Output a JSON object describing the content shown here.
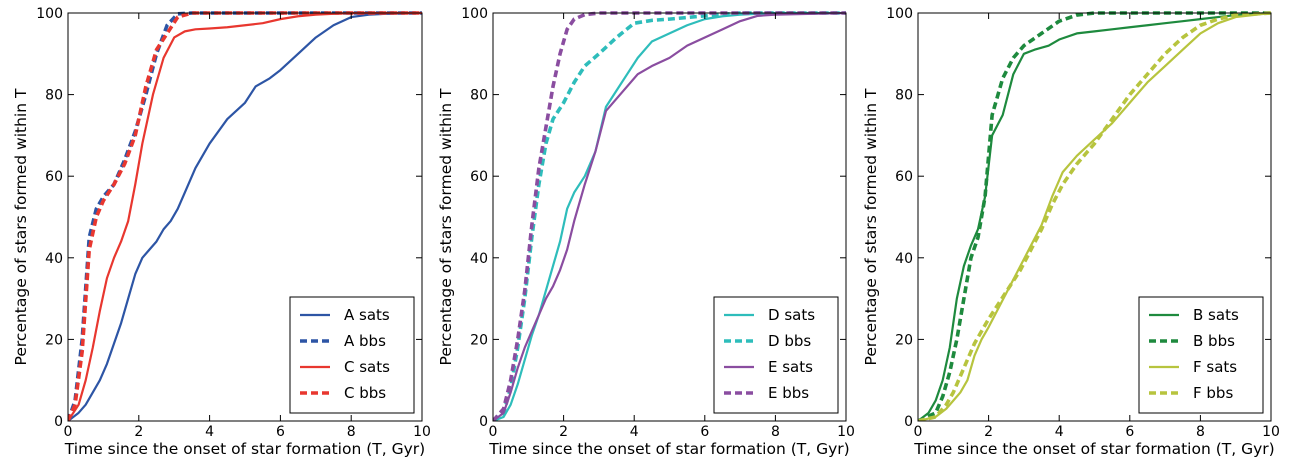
{
  "chart_data": [
    {
      "type": "line",
      "xlabel": "Time since the onset of star formation (T, Gyr)",
      "ylabel": "Percentage of stars formed within T",
      "xlim": [
        0,
        10
      ],
      "ylim": [
        0,
        100
      ],
      "xticks": [
        "0",
        "2",
        "4",
        "6",
        "8",
        "10"
      ],
      "yticks": [
        "0",
        "20",
        "40",
        "60",
        "80",
        "100"
      ],
      "legend_position": "lower-right",
      "series": [
        {
          "name": "A sats",
          "color": "#2d55a5",
          "dashed": false,
          "x": [
            0,
            0.3,
            0.5,
            0.7,
            0.9,
            1.1,
            1.3,
            1.5,
            1.7,
            1.9,
            2.1,
            2.3,
            2.5,
            2.7,
            2.9,
            3.1,
            3.3,
            3.6,
            4.0,
            4.5,
            5.0,
            5.3,
            5.7,
            6.0,
            6.5,
            7.0,
            7.5,
            8.0,
            8.5,
            9.0,
            10.0
          ],
          "y": [
            0,
            2,
            4,
            7,
            10,
            14,
            19,
            24,
            30,
            36,
            40,
            42,
            44,
            47,
            49,
            52,
            56,
            62,
            68,
            74,
            78,
            82,
            84,
            86,
            90,
            94,
            97,
            99,
            99.6,
            99.8,
            100
          ]
        },
        {
          "name": "A bbs",
          "color": "#2d55a5",
          "dashed": true,
          "x": [
            0,
            0.2,
            0.4,
            0.6,
            0.8,
            1.0,
            1.3,
            1.6,
            1.9,
            2.2,
            2.5,
            2.8,
            3.1,
            3.5,
            4.0,
            10.0
          ],
          "y": [
            0,
            5,
            20,
            45,
            52,
            55,
            58,
            64,
            71,
            80,
            90,
            97,
            99.8,
            100,
            100,
            100
          ]
        },
        {
          "name": "C sats",
          "color": "#e8372f",
          "dashed": false,
          "x": [
            0,
            0.3,
            0.5,
            0.7,
            0.9,
            1.1,
            1.3,
            1.5,
            1.7,
            1.9,
            2.1,
            2.4,
            2.7,
            3.0,
            3.3,
            3.6,
            4.0,
            4.5,
            5.0,
            5.5,
            6.0,
            6.5,
            7.0,
            7.5,
            8.0,
            10.0
          ],
          "y": [
            0,
            4,
            10,
            18,
            27,
            35,
            40,
            44,
            49,
            58,
            68,
            80,
            89,
            94,
            95.5,
            96,
            96.2,
            96.5,
            97,
            97.5,
            98.5,
            99.2,
            99.6,
            99.8,
            100,
            100
          ]
        },
        {
          "name": "C bbs",
          "color": "#e8372f",
          "dashed": true,
          "x": [
            0,
            0.2,
            0.4,
            0.6,
            0.8,
            1.0,
            1.3,
            1.6,
            1.9,
            2.2,
            2.5,
            2.8,
            3.1,
            3.5,
            4.0,
            10.0
          ],
          "y": [
            0,
            4,
            17,
            42,
            50,
            54,
            58,
            63,
            70,
            82,
            91,
            95,
            99,
            100,
            100,
            100
          ]
        }
      ]
    },
    {
      "type": "line",
      "xlabel": "Time since the onset of star formation (T, Gyr)",
      "ylabel": "Percentage of stars formed within T",
      "xlim": [
        0,
        10
      ],
      "ylim": [
        0,
        100
      ],
      "xticks": [
        "0",
        "2",
        "4",
        "6",
        "8",
        "10"
      ],
      "yticks": [
        "0",
        "20",
        "40",
        "60",
        "80",
        "100"
      ],
      "legend_position": "lower-right",
      "series": [
        {
          "name": "D sats",
          "color": "#2ebdbb",
          "dashed": false,
          "x": [
            0,
            0.3,
            0.5,
            0.7,
            0.9,
            1.1,
            1.3,
            1.5,
            1.7,
            1.9,
            2.1,
            2.3,
            2.6,
            2.9,
            3.2,
            3.5,
            3.8,
            4.1,
            4.5,
            5.0,
            5.5,
            6.0,
            6.5,
            7.0,
            8.0,
            10.0
          ],
          "y": [
            0,
            1,
            4,
            9,
            15,
            21,
            26,
            32,
            38,
            44,
            52,
            56,
            60,
            66,
            77,
            81,
            85,
            89,
            93,
            95,
            97,
            98.5,
            99.2,
            99.6,
            100,
            100
          ]
        },
        {
          "name": "D bbs",
          "color": "#2ebdbb",
          "dashed": true,
          "x": [
            0,
            0.3,
            0.5,
            0.7,
            0.9,
            1.1,
            1.3,
            1.5,
            1.7,
            2.0,
            2.3,
            2.6,
            3.0,
            3.5,
            4.0,
            4.5,
            5.0,
            6.0,
            7.0,
            8.0,
            10.0
          ],
          "y": [
            0,
            2,
            8,
            18,
            30,
            45,
            58,
            68,
            74,
            78,
            83,
            87,
            90,
            94,
            97.5,
            98.2,
            98.5,
            99.3,
            100,
            100,
            100
          ]
        },
        {
          "name": "E sats",
          "color": "#8a4da0",
          "dashed": false,
          "x": [
            0,
            0.3,
            0.5,
            0.7,
            0.9,
            1.1,
            1.3,
            1.5,
            1.7,
            1.9,
            2.1,
            2.3,
            2.6,
            2.9,
            3.2,
            3.5,
            3.8,
            4.1,
            4.5,
            5.0,
            5.5,
            6.0,
            6.5,
            7.0,
            7.5,
            8.0,
            10.0
          ],
          "y": [
            0,
            2,
            7,
            13,
            18,
            22,
            26,
            30,
            33,
            37,
            42,
            49,
            58,
            66,
            76,
            79,
            82,
            85,
            87,
            89,
            92,
            94,
            96,
            98,
            99.3,
            99.6,
            100
          ]
        },
        {
          "name": "E bbs",
          "color": "#8a4da0",
          "dashed": true,
          "x": [
            0,
            0.3,
            0.5,
            0.7,
            0.9,
            1.1,
            1.3,
            1.5,
            1.7,
            1.9,
            2.1,
            2.3,
            2.6,
            3.0,
            4.0,
            10.0
          ],
          "y": [
            0,
            3,
            10,
            20,
            32,
            48,
            62,
            72,
            82,
            90,
            96,
            98.5,
            99.6,
            100,
            100,
            100
          ]
        }
      ]
    },
    {
      "type": "line",
      "xlabel": "Time since the onset of star formation (T, Gyr)",
      "ylabel": "Percentage of stars formed within T",
      "xlim": [
        0,
        10
      ],
      "ylim": [
        0,
        100
      ],
      "xticks": [
        "0",
        "2",
        "4",
        "6",
        "8",
        "10"
      ],
      "yticks": [
        "0",
        "20",
        "40",
        "60",
        "80",
        "100"
      ],
      "legend_position": "lower-right",
      "series": [
        {
          "name": "B sats",
          "color": "#1e8a3e",
          "dashed": false,
          "x": [
            0,
            0.3,
            0.5,
            0.7,
            0.9,
            1.1,
            1.3,
            1.5,
            1.7,
            1.9,
            2.1,
            2.4,
            2.7,
            3.0,
            3.3,
            3.7,
            4.0,
            4.5,
            5.0,
            5.5,
            6.0,
            6.5,
            7.0,
            7.5,
            8.0,
            8.5,
            9.0,
            9.5,
            10.0
          ],
          "y": [
            0,
            2,
            5,
            10,
            18,
            30,
            38,
            43,
            47,
            55,
            70,
            75,
            85,
            90,
            91,
            92,
            93.5,
            95,
            95.5,
            96,
            96.5,
            97,
            97.5,
            98,
            98.5,
            99,
            99.5,
            99.8,
            100
          ]
        },
        {
          "name": "B bbs",
          "color": "#1e8a3e",
          "dashed": true,
          "x": [
            0,
            0.5,
            0.7,
            0.9,
            1.1,
            1.3,
            1.5,
            1.7,
            1.9,
            2.1,
            2.4,
            2.7,
            3.0,
            3.5,
            4.0,
            4.5,
            5.0,
            10.0
          ],
          "y": [
            0,
            2,
            6,
            12,
            20,
            30,
            40,
            45,
            55,
            75,
            84,
            89,
            92,
            95,
            98,
            99.5,
            100,
            100
          ]
        },
        {
          "name": "F sats",
          "color": "#b7c43e",
          "dashed": false,
          "x": [
            0,
            0.5,
            0.8,
            1.0,
            1.2,
            1.4,
            1.6,
            1.8,
            2.0,
            2.3,
            2.6,
            2.9,
            3.2,
            3.5,
            3.8,
            4.1,
            4.5,
            5.0,
            5.5,
            6.0,
            6.5,
            7.0,
            7.5,
            8.0,
            8.5,
            9.0,
            10.0
          ],
          "y": [
            0,
            1,
            3,
            5,
            7,
            10,
            16,
            20,
            23,
            28,
            33,
            38,
            43,
            48,
            55,
            61,
            65,
            69,
            73,
            78,
            83,
            87,
            91,
            95,
            97.5,
            99,
            100
          ]
        },
        {
          "name": "F bbs",
          "color": "#b7c43e",
          "dashed": true,
          "x": [
            0,
            0.5,
            0.8,
            1.0,
            1.2,
            1.4,
            1.6,
            1.8,
            2.0,
            2.3,
            2.6,
            2.9,
            3.2,
            3.5,
            3.8,
            4.1,
            4.5,
            5.0,
            5.5,
            6.0,
            6.5,
            7.0,
            7.5,
            8.0,
            8.5,
            9.0,
            10.0
          ],
          "y": [
            0,
            1,
            4,
            7,
            11,
            15,
            19,
            22,
            25,
            29,
            33,
            37,
            42,
            47,
            53,
            58,
            63,
            68,
            74,
            80,
            85,
            90,
            94,
            97,
            98.5,
            99.5,
            100
          ]
        }
      ]
    }
  ]
}
